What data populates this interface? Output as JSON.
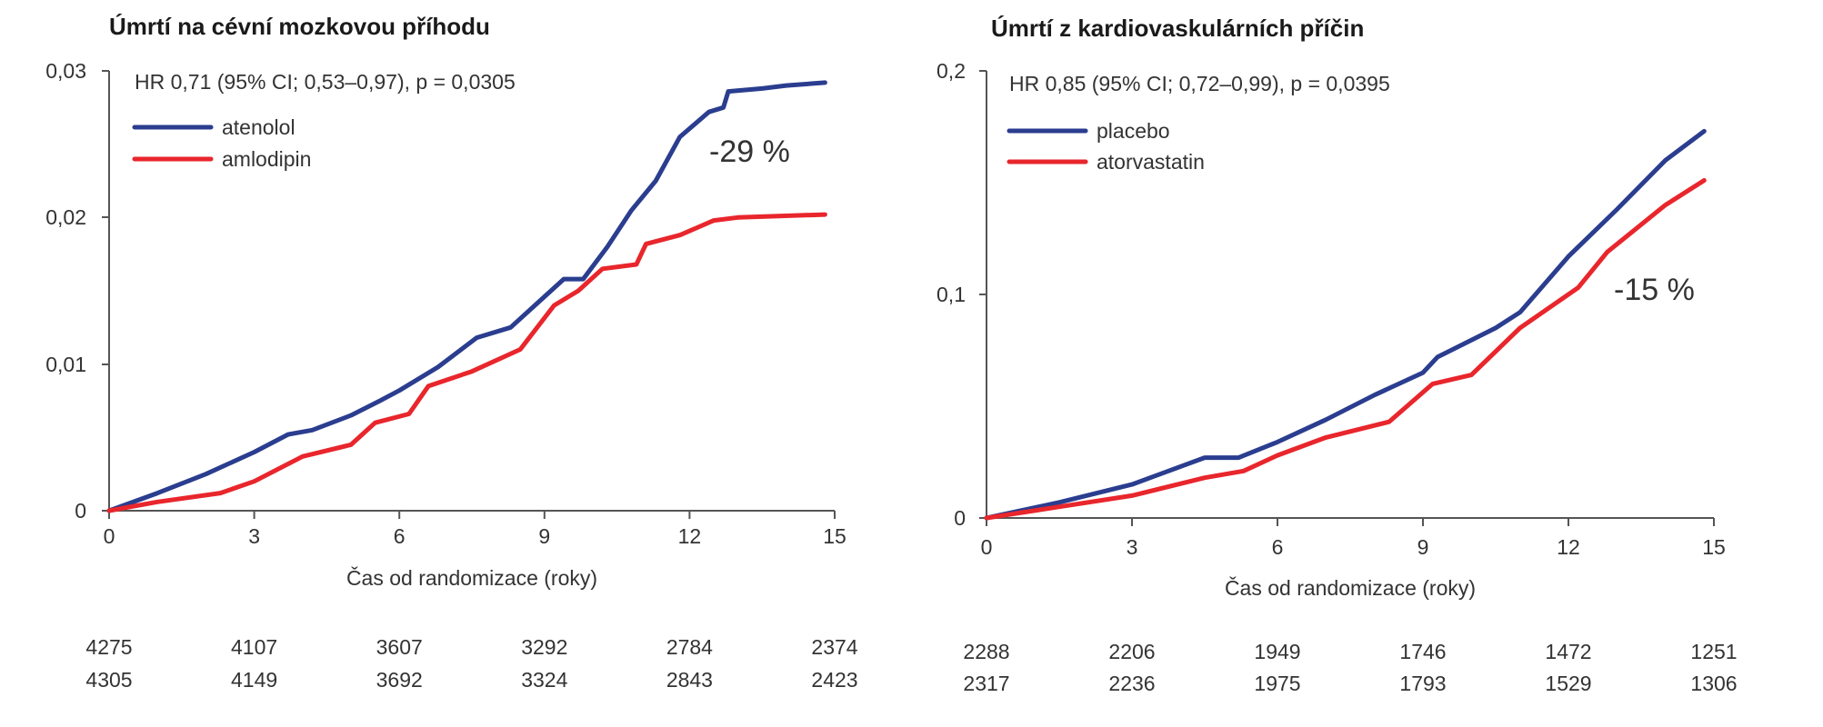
{
  "chart_data": [
    {
      "type": "line",
      "title": "Úmrtí na cévní mozkovou příhodu",
      "annotation": "HR 0,71 (95% CI; 0,53–0,97), p = 0,0305",
      "reduction_label": "-29 %",
      "xlabel": "Čas od randomizace (roky)",
      "ylabel": "",
      "xlim": [
        0,
        15
      ],
      "ylim": [
        0,
        0.03
      ],
      "x_ticks": [
        "0",
        "3",
        "6",
        "9",
        "12",
        "15"
      ],
      "y_ticks": [
        "0",
        "0,01",
        "0,02",
        "0,03"
      ],
      "legend_position": "top-left",
      "series": [
        {
          "name": "atenolol",
          "color": "#2a3d8f",
          "x": [
            0,
            1,
            2,
            3,
            3.7,
            4.2,
            5,
            5.6,
            6,
            6.8,
            7.6,
            8.3,
            8.8,
            9.4,
            9.8,
            10.3,
            10.8,
            11.3,
            11.8,
            12.4,
            12.7,
            12.8,
            13.5,
            14.0,
            14.8
          ],
          "y": [
            0,
            0.0012,
            0.0025,
            0.004,
            0.0052,
            0.0055,
            0.0065,
            0.0075,
            0.0082,
            0.0098,
            0.0118,
            0.0125,
            0.014,
            0.0158,
            0.0158,
            0.018,
            0.0205,
            0.0225,
            0.0255,
            0.0272,
            0.0275,
            0.0286,
            0.0288,
            0.029,
            0.0292
          ]
        },
        {
          "name": "amlodipin",
          "color": "#e8262c",
          "x": [
            0,
            1,
            2.3,
            3,
            4,
            5,
            5.5,
            6.2,
            6.6,
            7.5,
            8.5,
            9.2,
            9.7,
            10.2,
            10.9,
            11.1,
            11.8,
            12.5,
            13,
            14.8
          ],
          "y": [
            0,
            0.0006,
            0.0012,
            0.002,
            0.0037,
            0.0045,
            0.006,
            0.0066,
            0.0085,
            0.0095,
            0.011,
            0.014,
            0.015,
            0.0165,
            0.0168,
            0.0182,
            0.0188,
            0.0198,
            0.02,
            0.0202
          ]
        }
      ],
      "risk_table": [
        [
          "4275",
          "4107",
          "3607",
          "3292",
          "2784",
          "2374"
        ],
        [
          "4305",
          "4149",
          "3692",
          "3324",
          "2843",
          "2423"
        ]
      ]
    },
    {
      "type": "line",
      "title": "Úmrtí z kardiovaskulárních příčin",
      "annotation": "HR 0,85 (95% CI; 0,72–0,99), p = 0,0395",
      "reduction_label": "-15 %",
      "xlabel": "Čas od randomizace (roky)",
      "ylabel": "",
      "xlim": [
        0,
        15
      ],
      "ylim": [
        0,
        0.2
      ],
      "x_ticks": [
        "0",
        "3",
        "6",
        "9",
        "12",
        "15"
      ],
      "y_ticks": [
        "0",
        "0,1",
        "0,2"
      ],
      "legend_position": "top-left",
      "series": [
        {
          "name": "placebo",
          "color": "#2a3d8f",
          "x": [
            0,
            1.5,
            3,
            4.5,
            5.2,
            6,
            7,
            8,
            9.0,
            9.3,
            10.5,
            11,
            12,
            13,
            14,
            14.8
          ],
          "y": [
            0,
            0.007,
            0.015,
            0.027,
            0.027,
            0.034,
            0.044,
            0.055,
            0.065,
            0.072,
            0.085,
            0.092,
            0.117,
            0.138,
            0.16,
            0.173
          ]
        },
        {
          "name": "atorvastatin",
          "color": "#e8262c",
          "x": [
            0,
            1.5,
            3,
            4.5,
            5.3,
            6,
            7,
            8.3,
            9.2,
            10,
            11,
            12.2,
            12.8,
            14,
            14.8
          ],
          "y": [
            0,
            0.005,
            0.01,
            0.018,
            0.021,
            0.028,
            0.036,
            0.043,
            0.06,
            0.064,
            0.085,
            0.103,
            0.119,
            0.14,
            0.151
          ]
        }
      ],
      "risk_table": [
        [
          "2288",
          "2206",
          "1949",
          "1746",
          "1472",
          "1251"
        ],
        [
          "2317",
          "2236",
          "1975",
          "1793",
          "1529",
          "1306"
        ]
      ]
    }
  ]
}
